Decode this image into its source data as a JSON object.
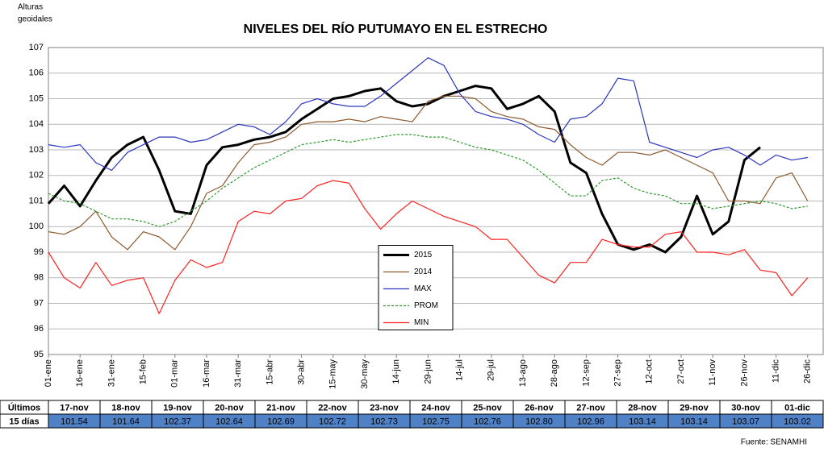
{
  "chart_data": {
    "type": "line",
    "title": "NIVELES DEL RÍO PUTUMAYO EN EL ESTRECHO",
    "y_label": [
      "Alturas",
      "geoidales"
    ],
    "source": "Fuente: SENAMHI",
    "x": [
      "01-ene",
      null,
      "16-ene",
      null,
      "31-ene",
      null,
      "15-feb",
      null,
      "01-mar",
      null,
      "16-mar",
      null,
      "31-mar",
      null,
      "15-abr",
      null,
      "30-abr",
      null,
      "15-may",
      null,
      "30-may",
      null,
      "14-jun",
      null,
      "29-jun",
      null,
      "14-jul",
      null,
      "29-jul",
      null,
      "13-ago",
      null,
      "28-ago",
      null,
      "12-sep",
      null,
      "27-sep",
      null,
      "12-oct",
      null,
      "27-oct",
      null,
      "11-nov",
      null,
      "26-nov",
      null,
      "11-dic",
      null,
      "26-dic"
    ],
    "ylim": [
      95,
      107
    ],
    "yticks": [
      95,
      96,
      97,
      98,
      99,
      100,
      101,
      102,
      103,
      104,
      105,
      106,
      107
    ],
    "grid": true,
    "legend": "center",
    "series": [
      {
        "name": "2015",
        "color": "#000000",
        "values": [
          100.9,
          101.6,
          100.8,
          101.8,
          102.7,
          103.2,
          103.5,
          102.2,
          100.6,
          100.5,
          102.4,
          103.1,
          103.2,
          103.4,
          103.5,
          103.7,
          104.2,
          104.6,
          105.0,
          105.1,
          105.3,
          105.4,
          104.9,
          104.7,
          104.8,
          105.1,
          105.3,
          105.5,
          105.4,
          104.6,
          104.8,
          105.1,
          104.5,
          102.5,
          102.1,
          100.5,
          99.3,
          99.1,
          99.3,
          99.0,
          99.6,
          101.2,
          99.7,
          100.2,
          102.6,
          103.1,
          null,
          null,
          null
        ]
      },
      {
        "name": "2014",
        "color": "#8c5a2e",
        "values": [
          99.8,
          99.7,
          100.0,
          100.6,
          99.6,
          99.1,
          99.8,
          99.6,
          99.1,
          100.0,
          101.3,
          101.6,
          102.5,
          103.2,
          103.3,
          103.5,
          104.0,
          104.1,
          104.1,
          104.2,
          104.1,
          104.3,
          104.2,
          104.1,
          104.9,
          105.1,
          105.1,
          105.0,
          104.5,
          104.3,
          104.2,
          103.9,
          103.8,
          103.2,
          102.7,
          102.4,
          102.9,
          102.9,
          102.8,
          103.0,
          102.7,
          102.4,
          102.1,
          101.0,
          101.0,
          100.9,
          101.9,
          102.1,
          101.0
        ]
      },
      {
        "name": "MAX",
        "color": "#2a36c0",
        "values": [
          103.2,
          103.1,
          103.2,
          102.5,
          102.2,
          102.9,
          103.2,
          103.5,
          103.5,
          103.3,
          103.4,
          103.7,
          104.0,
          103.9,
          103.6,
          104.1,
          104.8,
          105.0,
          104.8,
          104.7,
          104.7,
          105.1,
          105.6,
          106.1,
          106.6,
          106.3,
          105.2,
          104.5,
          104.3,
          104.2,
          104.0,
          103.6,
          103.3,
          104.2,
          104.3,
          104.8,
          105.8,
          105.7,
          103.3,
          103.1,
          102.9,
          102.7,
          103.0,
          103.1,
          102.8,
          102.4,
          102.8,
          102.6,
          102.7
        ]
      },
      {
        "name": "PROM",
        "color": "#2e9a2e",
        "dashed": true,
        "values": [
          101.3,
          101.0,
          100.9,
          100.6,
          100.3,
          100.3,
          100.2,
          100.0,
          100.2,
          100.6,
          101.0,
          101.5,
          101.9,
          102.3,
          102.6,
          102.9,
          103.2,
          103.3,
          103.4,
          103.3,
          103.4,
          103.5,
          103.6,
          103.6,
          103.5,
          103.5,
          103.3,
          103.1,
          103.0,
          102.8,
          102.6,
          102.2,
          101.7,
          101.2,
          101.2,
          101.8,
          101.9,
          101.5,
          101.3,
          101.2,
          100.9,
          100.9,
          100.7,
          100.8,
          100.9,
          101.0,
          100.9,
          100.7,
          100.8
        ]
      },
      {
        "name": "MIN",
        "color": "#ff2020",
        "values": [
          99.0,
          98.0,
          97.6,
          98.6,
          97.7,
          97.9,
          98.0,
          96.6,
          97.9,
          98.7,
          98.4,
          98.6,
          100.2,
          100.6,
          100.5,
          101.0,
          101.1,
          101.6,
          101.8,
          101.7,
          100.7,
          99.9,
          100.5,
          101.0,
          100.7,
          100.4,
          100.2,
          100.0,
          99.5,
          99.5,
          98.8,
          98.1,
          97.8,
          98.6,
          98.6,
          99.5,
          99.3,
          99.2,
          99.2,
          99.7,
          99.8,
          99.0,
          99.0,
          98.9,
          99.1,
          98.3,
          98.2,
          97.3,
          98.0
        ]
      }
    ]
  },
  "table": {
    "row_headers": [
      "Últimos",
      "15 días"
    ],
    "dates": [
      "17-nov",
      "18-nov",
      "19-nov",
      "20-nov",
      "21-nov",
      "22-nov",
      "23-nov",
      "24-nov",
      "25-nov",
      "26-nov",
      "27-nov",
      "28-nov",
      "29-nov",
      "30-nov",
      "01-dic"
    ],
    "values": [
      "101.54",
      "101.64",
      "102.37",
      "102.64",
      "102.69",
      "102.72",
      "102.73",
      "102.75",
      "102.76",
      "102.80",
      "102.96",
      "103.14",
      "103.14",
      "103.07",
      "103.02"
    ]
  }
}
